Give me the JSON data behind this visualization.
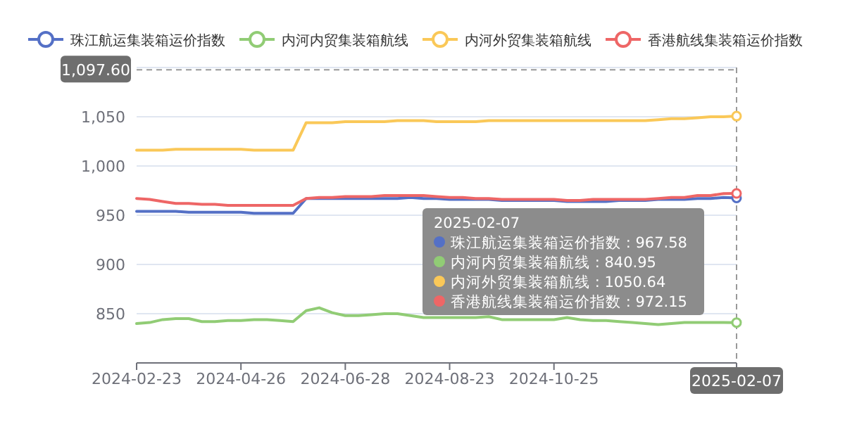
{
  "chart_data": {
    "type": "line",
    "legend": "top",
    "grid": "y",
    "marker": "none",
    "line_style": "solid",
    "categories": [
      "2024-02-23",
      null,
      null,
      null,
      null,
      null,
      null,
      null,
      "2024-04-26",
      null,
      null,
      null,
      null,
      null,
      null,
      null,
      "2024-06-28",
      null,
      null,
      null,
      null,
      null,
      null,
      null,
      "2024-08-23",
      null,
      null,
      null,
      null,
      null,
      null,
      null,
      "2024-10-25",
      null,
      null,
      null,
      null,
      null,
      null,
      null,
      null,
      null,
      null,
      null,
      null,
      null,
      "2025-02-07"
    ],
    "ylim": [
      800,
      1100
    ],
    "yticks": [
      850,
      {
        "value": 900,
        "label": "900"
      },
      {
        "value": 950,
        "label": "950"
      },
      {
        "value": 1000,
        "label": "1,000"
      },
      {
        "value": 1050,
        "label": "1,050"
      },
      {
        "value": 1100,
        "label": null
      }
    ],
    "ref_lines": [
      {
        "axis": "y",
        "value": 1097.6,
        "label": "1,097.60",
        "line_style": "dashed"
      },
      {
        "axis": "x",
        "value": "2025-02-07",
        "line_style": "dashed"
      }
    ],
    "annotations": [
      "2025-02-07",
      "珠江航运集装箱运价指数 : 967.58",
      "内河内贸集装箱航线 : 840.95",
      "内河外贸集装箱航线 : 1050.64",
      "香港航线集装箱运价指数 : 972.15"
    ],
    "series": [
      {
        "name": "珠江航运集装箱运价指数",
        "color": "#5470c6",
        "values": [
          954,
          954,
          954,
          954,
          953,
          953,
          953,
          953,
          953,
          952,
          952,
          952,
          952,
          967,
          967,
          967,
          967,
          967,
          967,
          967,
          967,
          968,
          967,
          967,
          966,
          966,
          966,
          966,
          965,
          965,
          965,
          965,
          965,
          964,
          964,
          964,
          964,
          965,
          965,
          965,
          966,
          966,
          966,
          967,
          967,
          968,
          967.58
        ]
      },
      {
        "name": "内河内贸集装箱航线",
        "color": "#91cc75",
        "values": [
          840,
          841,
          844,
          845,
          845,
          842,
          842,
          843,
          843,
          844,
          844,
          843,
          842,
          853,
          856,
          851,
          848,
          848,
          849,
          850,
          850,
          848,
          846,
          846,
          846,
          846,
          846,
          847,
          844,
          844,
          844,
          844,
          844,
          846,
          844,
          843,
          843,
          842,
          841,
          840,
          839,
          840,
          841,
          841,
          841,
          841,
          840.95
        ]
      },
      {
        "name": "内河外贸集装箱航线",
        "color": "#fac858",
        "values": [
          1016,
          1016,
          1016,
          1017,
          1017,
          1017,
          1017,
          1017,
          1017,
          1016,
          1016,
          1016,
          1016,
          1044,
          1044,
          1044,
          1045,
          1045,
          1045,
          1045,
          1046,
          1046,
          1046,
          1045,
          1045,
          1045,
          1045,
          1046,
          1046,
          1046,
          1046,
          1046,
          1046,
          1046,
          1046,
          1046,
          1046,
          1046,
          1046,
          1046,
          1047,
          1048,
          1048,
          1049,
          1050,
          1050,
          1050.64
        ]
      },
      {
        "name": "香港航线集装箱运价指数",
        "color": "#ee6666",
        "values": [
          967,
          966,
          964,
          962,
          962,
          961,
          961,
          960,
          960,
          960,
          960,
          960,
          960,
          967,
          968,
          968,
          969,
          969,
          969,
          970,
          970,
          970,
          970,
          969,
          968,
          968,
          967,
          967,
          966,
          966,
          966,
          966,
          966,
          965,
          965,
          966,
          966,
          966,
          966,
          966,
          967,
          968,
          968,
          970,
          970,
          972,
          972.15
        ]
      }
    ]
  }
}
